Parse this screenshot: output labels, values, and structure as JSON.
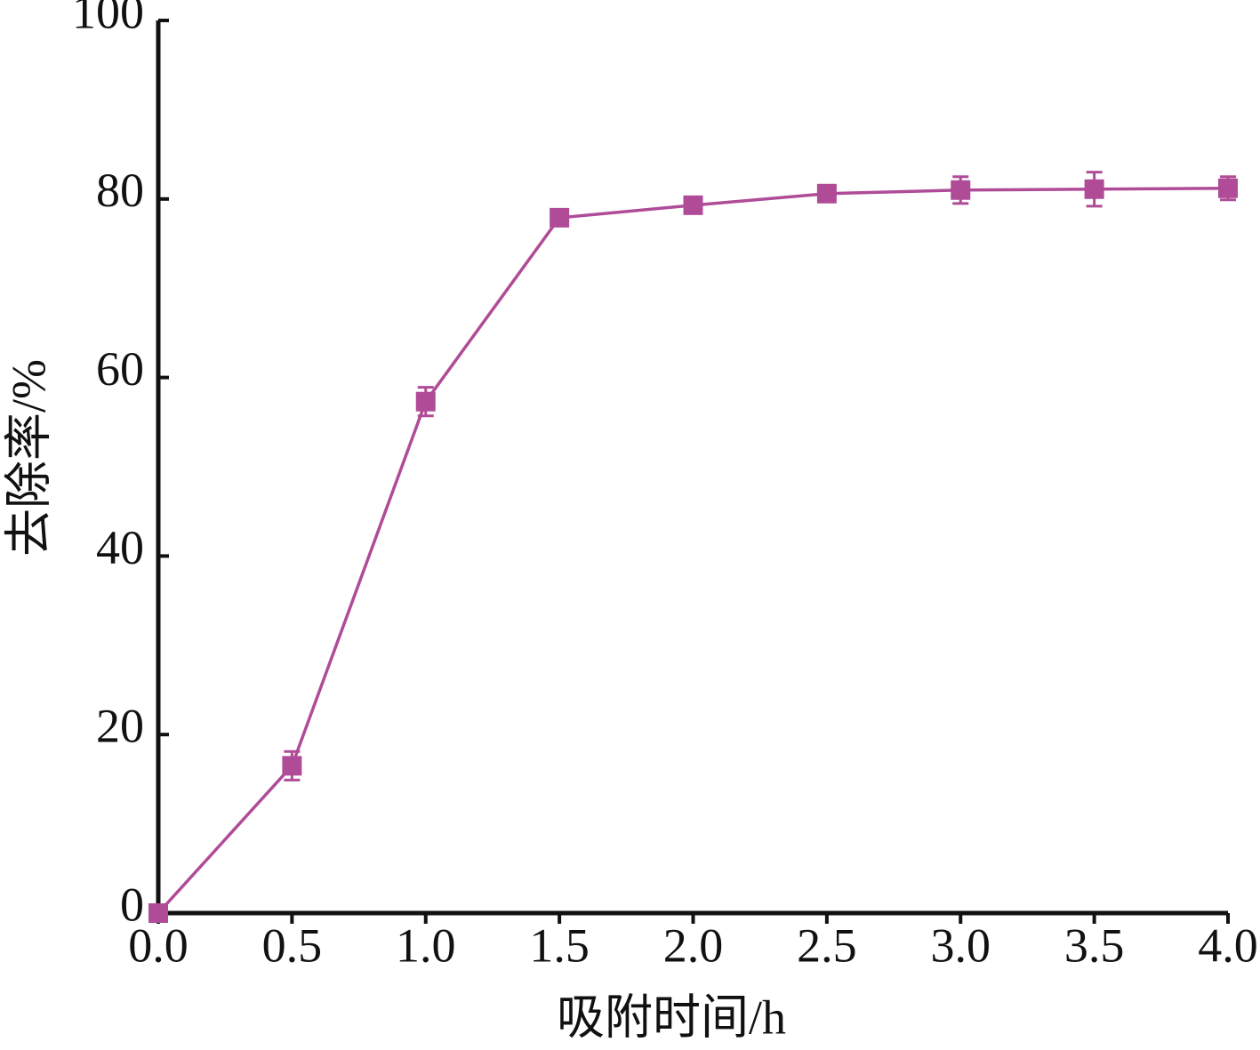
{
  "chart_data": {
    "type": "line",
    "xlabel": "吸附时间/h",
    "ylabel": "去除率/%",
    "x": [
      0,
      0.5,
      1.0,
      1.5,
      2.0,
      2.5,
      3.0,
      3.5,
      4.0
    ],
    "values": [
      0,
      16.5,
      57.3,
      77.9,
      79.3,
      80.6,
      81.0,
      81.1,
      81.2
    ],
    "errors": [
      0,
      1.6,
      1.6,
      0.5,
      0.3,
      0.3,
      1.5,
      1.9,
      1.3
    ],
    "color": "#b04c97",
    "xlim": [
      0,
      4.0
    ],
    "ylim": [
      0,
      100
    ],
    "xticks": [
      {
        "value": 0,
        "label": "0.0"
      },
      0.5,
      {
        "value": 1,
        "label": "1.0"
      },
      1.5,
      {
        "value": 2,
        "label": "2.0"
      },
      2.5,
      {
        "value": 3,
        "label": "3.0"
      },
      3.5,
      {
        "value": 4,
        "label": "4.0"
      }
    ],
    "yticks": [
      0,
      20,
      40,
      60,
      80,
      100
    ]
  }
}
